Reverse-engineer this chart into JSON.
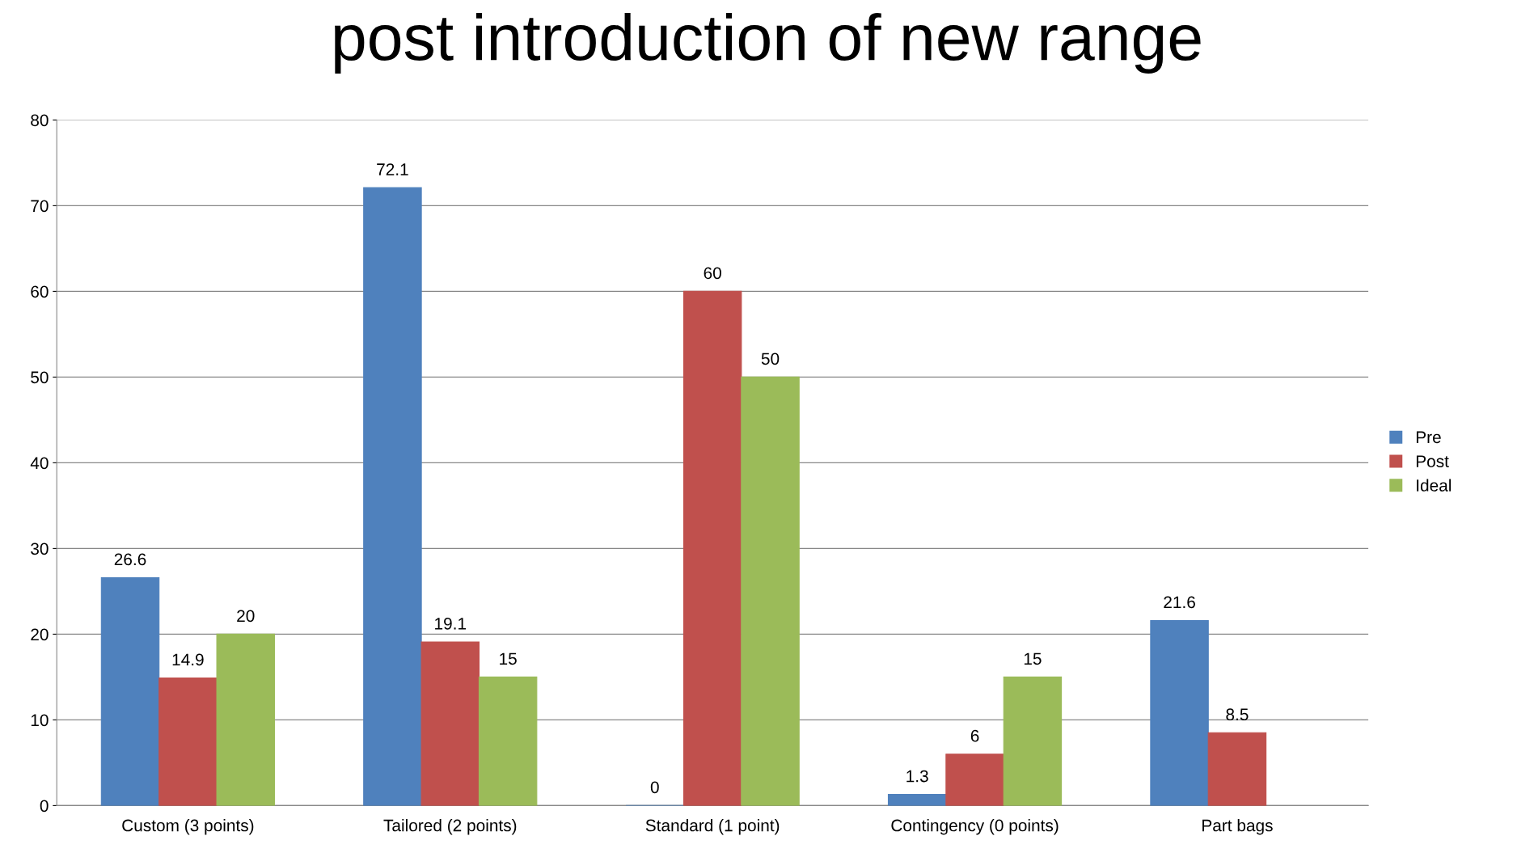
{
  "chart_data": {
    "type": "bar",
    "title": "post introduction of new range",
    "categories": [
      "Custom (3 points)",
      "Tailored (2 points)",
      "Standard (1 point)",
      "Contingency (0 points)",
      "Part bags"
    ],
    "series": [
      {
        "name": "Pre",
        "color": "#4f81bd",
        "values": [
          26.6,
          72.1,
          0,
          1.3,
          21.6
        ]
      },
      {
        "name": "Post",
        "color": "#c0504d",
        "values": [
          14.9,
          19.1,
          60,
          6,
          8.5
        ]
      },
      {
        "name": "Ideal",
        "color": "#9bbb59",
        "values": [
          20,
          15,
          50,
          15,
          null
        ]
      }
    ],
    "ylim": [
      0,
      80
    ],
    "yticks": [
      0,
      10,
      20,
      30,
      40,
      50,
      60,
      70,
      80
    ],
    "grid": "y",
    "legend": "right",
    "data_labels": true
  }
}
